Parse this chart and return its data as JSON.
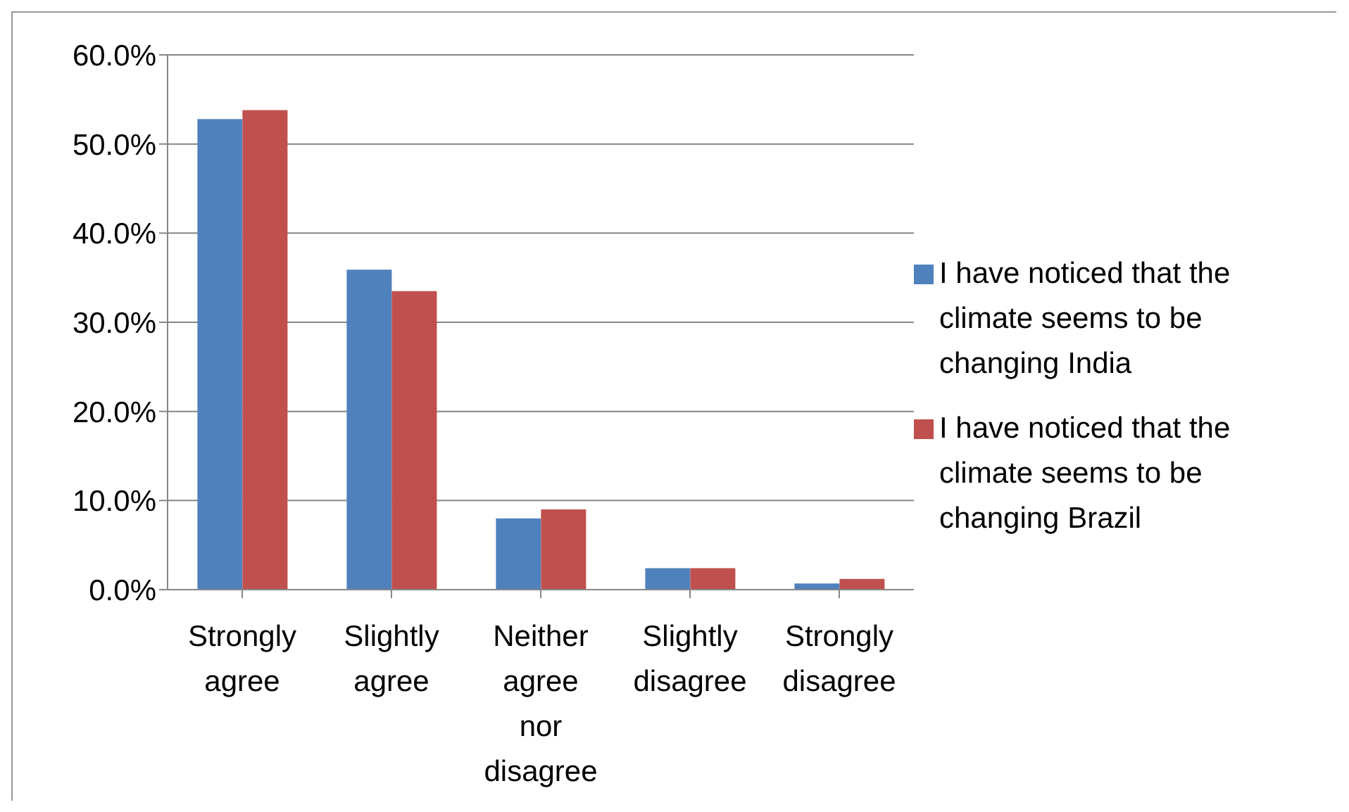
{
  "chart_data": {
    "type": "bar",
    "categories": [
      "Strongly agree",
      "Slightly agree",
      "Neither agree nor disagree",
      "Slightly disagree",
      "Strongly disagree"
    ],
    "series": [
      {
        "name": "I have noticed that the climate seems to be changing India",
        "color": "#4f81bd",
        "values": [
          52.8,
          35.9,
          8.0,
          2.4,
          0.7
        ]
      },
      {
        "name": "I have noticed that the climate seems to be changing Brazil",
        "color": "#c0504d",
        "values": [
          53.8,
          33.5,
          9.0,
          2.4,
          1.2
        ]
      }
    ],
    "ylim": [
      0,
      60
    ],
    "yticks": [
      {
        "value": 0,
        "label": "0.0%"
      },
      {
        "value": 10,
        "label": "10.0%"
      },
      {
        "value": 20,
        "label": "20.0%"
      },
      {
        "value": 30,
        "label": "30.0%"
      },
      {
        "value": 40,
        "label": "40.0%"
      },
      {
        "value": 50,
        "label": "50.0%"
      },
      {
        "value": 60,
        "label": "60.0%"
      }
    ],
    "grid": "y",
    "legend": "right"
  }
}
